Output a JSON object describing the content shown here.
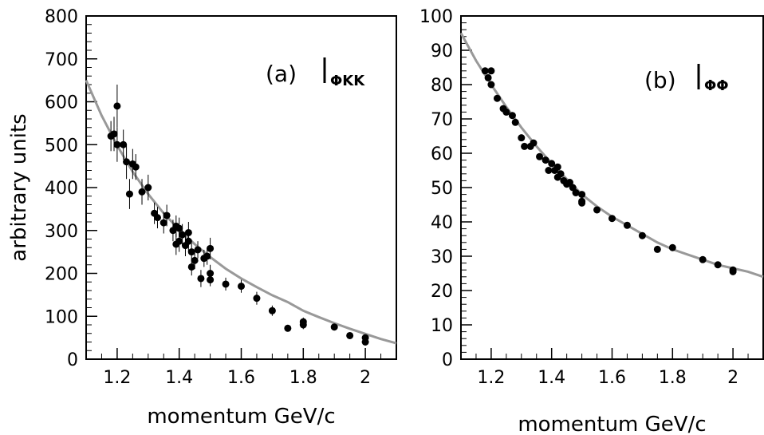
{
  "chart_data": [
    {
      "type": "scatter",
      "panel_label": "(a)",
      "symbol_label": "ΦKK",
      "xlabel": "momentum GeV/c",
      "ylabel": "arbitrary units",
      "xlim": [
        1.1,
        2.1
      ],
      "ylim": [
        0,
        800
      ],
      "xticks": [
        1.2,
        1.4,
        1.6,
        1.8,
        2
      ],
      "xtick_labels": [
        "1.2",
        "1.4",
        "1.6",
        "1.8",
        "2"
      ],
      "yticks": [
        0,
        100,
        200,
        300,
        400,
        500,
        600,
        700,
        800
      ],
      "ytick_labels": [
        "0",
        "100",
        "200",
        "300",
        "400",
        "500",
        "600",
        "700",
        "800"
      ],
      "points": [
        {
          "x": 1.18,
          "y": 520,
          "err": 35
        },
        {
          "x": 1.19,
          "y": 525,
          "err": 40
        },
        {
          "x": 1.2,
          "y": 590,
          "err": 50
        },
        {
          "x": 1.2,
          "y": 500,
          "err": 40
        },
        {
          "x": 1.22,
          "y": 500,
          "err": 35
        },
        {
          "x": 1.23,
          "y": 460,
          "err": 40
        },
        {
          "x": 1.24,
          "y": 385,
          "err": 35
        },
        {
          "x": 1.25,
          "y": 455,
          "err": 35
        },
        {
          "x": 1.26,
          "y": 448,
          "err": 30
        },
        {
          "x": 1.28,
          "y": 390,
          "err": 30
        },
        {
          "x": 1.3,
          "y": 400,
          "err": 30
        },
        {
          "x": 1.32,
          "y": 340,
          "err": 25
        },
        {
          "x": 1.33,
          "y": 330,
          "err": 25
        },
        {
          "x": 1.35,
          "y": 318,
          "err": 25
        },
        {
          "x": 1.36,
          "y": 335,
          "err": 25
        },
        {
          "x": 1.38,
          "y": 300,
          "err": 25
        },
        {
          "x": 1.39,
          "y": 310,
          "err": 25
        },
        {
          "x": 1.39,
          "y": 268,
          "err": 25
        },
        {
          "x": 1.4,
          "y": 305,
          "err": 25
        },
        {
          "x": 1.4,
          "y": 275,
          "err": 25
        },
        {
          "x": 1.41,
          "y": 290,
          "err": 25
        },
        {
          "x": 1.42,
          "y": 265,
          "err": 25
        },
        {
          "x": 1.43,
          "y": 295,
          "err": 25
        },
        {
          "x": 1.43,
          "y": 275,
          "err": 25
        },
        {
          "x": 1.44,
          "y": 215,
          "err": 20
        },
        {
          "x": 1.44,
          "y": 250,
          "err": 20
        },
        {
          "x": 1.45,
          "y": 230,
          "err": 20
        },
        {
          "x": 1.46,
          "y": 255,
          "err": 20
        },
        {
          "x": 1.47,
          "y": 188,
          "err": 20
        },
        {
          "x": 1.48,
          "y": 235,
          "err": 20
        },
        {
          "x": 1.49,
          "y": 240,
          "err": 20
        },
        {
          "x": 1.5,
          "y": 185,
          "err": 15
        },
        {
          "x": 1.5,
          "y": 200,
          "err": 20
        },
        {
          "x": 1.5,
          "y": 258,
          "err": 25
        },
        {
          "x": 1.55,
          "y": 175,
          "err": 15
        },
        {
          "x": 1.6,
          "y": 170,
          "err": 15
        },
        {
          "x": 1.65,
          "y": 142,
          "err": 15
        },
        {
          "x": 1.7,
          "y": 113,
          "err": 12
        },
        {
          "x": 1.75,
          "y": 72,
          "err": 8
        },
        {
          "x": 1.8,
          "y": 80,
          "err": 10
        },
        {
          "x": 1.8,
          "y": 87,
          "err": 10
        },
        {
          "x": 1.9,
          "y": 75,
          "err": 8
        },
        {
          "x": 1.95,
          "y": 55,
          "err": 6
        },
        {
          "x": 2.0,
          "y": 40,
          "err": 6
        },
        {
          "x": 2.0,
          "y": 50,
          "err": 6
        }
      ],
      "fit_curve": {
        "x": [
          1.1,
          1.15,
          1.2,
          1.25,
          1.3,
          1.35,
          1.4,
          1.45,
          1.5,
          1.55,
          1.6,
          1.65,
          1.7,
          1.75,
          1.8,
          1.85,
          1.9,
          1.95,
          2.0,
          2.05,
          2.1
        ],
        "y": [
          650,
          568,
          498,
          437,
          385,
          340,
          302,
          268,
          238,
          211,
          188,
          168,
          149,
          133,
          113,
          98,
          84,
          71,
          59,
          47,
          37
        ]
      }
    },
    {
      "type": "scatter",
      "panel_label": "(b)",
      "symbol_label": "ΦΦ",
      "xlabel": "momentum GeV/c",
      "ylabel": "",
      "xlim": [
        1.1,
        2.1
      ],
      "ylim": [
        0,
        100
      ],
      "xticks": [
        1.2,
        1.4,
        1.6,
        1.8,
        2
      ],
      "xtick_labels": [
        "1.2",
        "1.4",
        "1.6",
        "1.8",
        "2"
      ],
      "yticks": [
        0,
        10,
        20,
        30,
        40,
        50,
        60,
        70,
        80,
        90,
        100
      ],
      "ytick_labels": [
        "0",
        "10",
        "20",
        "30",
        "40",
        "50",
        "60",
        "70",
        "80",
        "90",
        "100"
      ],
      "points": [
        {
          "x": 1.18,
          "y": 84
        },
        {
          "x": 1.19,
          "y": 82
        },
        {
          "x": 1.2,
          "y": 84
        },
        {
          "x": 1.2,
          "y": 80
        },
        {
          "x": 1.22,
          "y": 76
        },
        {
          "x": 1.24,
          "y": 73
        },
        {
          "x": 1.25,
          "y": 72
        },
        {
          "x": 1.27,
          "y": 71
        },
        {
          "x": 1.28,
          "y": 69
        },
        {
          "x": 1.3,
          "y": 64.5
        },
        {
          "x": 1.31,
          "y": 62
        },
        {
          "x": 1.33,
          "y": 62
        },
        {
          "x": 1.34,
          "y": 63
        },
        {
          "x": 1.36,
          "y": 59
        },
        {
          "x": 1.38,
          "y": 58
        },
        {
          "x": 1.39,
          "y": 55
        },
        {
          "x": 1.4,
          "y": 57
        },
        {
          "x": 1.41,
          "y": 55
        },
        {
          "x": 1.42,
          "y": 56
        },
        {
          "x": 1.42,
          "y": 53
        },
        {
          "x": 1.43,
          "y": 54
        },
        {
          "x": 1.44,
          "y": 52
        },
        {
          "x": 1.45,
          "y": 51
        },
        {
          "x": 1.46,
          "y": 51.5
        },
        {
          "x": 1.47,
          "y": 50
        },
        {
          "x": 1.48,
          "y": 48.5
        },
        {
          "x": 1.5,
          "y": 48
        },
        {
          "x": 1.5,
          "y": 46
        },
        {
          "x": 1.5,
          "y": 45.5
        },
        {
          "x": 1.55,
          "y": 43.5
        },
        {
          "x": 1.6,
          "y": 41
        },
        {
          "x": 1.65,
          "y": 39
        },
        {
          "x": 1.7,
          "y": 36
        },
        {
          "x": 1.75,
          "y": 32
        },
        {
          "x": 1.8,
          "y": 32.5
        },
        {
          "x": 1.9,
          "y": 29
        },
        {
          "x": 1.95,
          "y": 27.5
        },
        {
          "x": 2.0,
          "y": 26
        },
        {
          "x": 2.0,
          "y": 25.5
        }
      ],
      "fit_curve": {
        "x": [
          1.1,
          1.15,
          1.2,
          1.25,
          1.3,
          1.35,
          1.4,
          1.45,
          1.5,
          1.55,
          1.6,
          1.65,
          1.7,
          1.75,
          1.8,
          1.85,
          1.9,
          1.95,
          2.0,
          2.05,
          2.1
        ],
        "y": [
          95,
          87,
          80,
          73.5,
          67.5,
          62,
          57,
          52.5,
          48,
          44.5,
          41.5,
          39,
          36.5,
          34,
          32,
          30.5,
          29,
          27.5,
          26.5,
          25.5,
          24
        ]
      }
    }
  ]
}
